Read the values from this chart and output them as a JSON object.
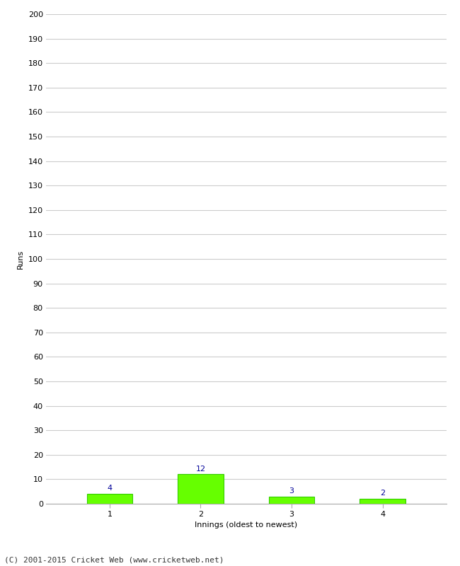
{
  "xlabel": "Innings (oldest to newest)",
  "ylabel": "Runs",
  "categories": [
    1,
    2,
    3,
    4
  ],
  "values": [
    4,
    12,
    3,
    2
  ],
  "bar_color": "#66ff00",
  "bar_edge_color": "#33cc00",
  "label_color": "#000080",
  "ylim": [
    0,
    200
  ],
  "yticks": [
    0,
    10,
    20,
    30,
    40,
    50,
    60,
    70,
    80,
    90,
    100,
    110,
    120,
    130,
    140,
    150,
    160,
    170,
    180,
    190,
    200
  ],
  "footer": "(C) 2001-2015 Cricket Web (www.cricketweb.net)",
  "background_color": "#ffffff",
  "grid_color": "#cccccc",
  "label_color_blue": "#000099",
  "label_fontsize": 8,
  "axis_label_fontsize": 8,
  "tick_fontsize": 8,
  "footer_fontsize": 8
}
